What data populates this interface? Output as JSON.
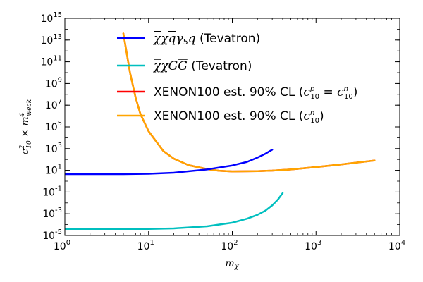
{
  "chart_data": {
    "type": "line",
    "xscale": "log",
    "yscale": "log",
    "xlim": [
      1,
      10000
    ],
    "ylim": [
      1e-05,
      1000000000000000
    ],
    "xlabel": "mχ",
    "ylabel": "c²₁₀ × m⁴weak",
    "grid": false,
    "legend": "top-center",
    "x_ticks": [
      {
        "base": "10",
        "exp": "0",
        "value": 1
      },
      {
        "base": "10",
        "exp": "1",
        "value": 10
      },
      {
        "base": "10",
        "exp": "2",
        "value": 100
      },
      {
        "base": "10",
        "exp": "3",
        "value": 1000
      },
      {
        "base": "10",
        "exp": "4",
        "value": 10000
      }
    ],
    "y_ticks": [
      {
        "base": "10",
        "exp": "-5",
        "value": 1e-05
      },
      {
        "base": "10",
        "exp": "-3",
        "value": 0.001
      },
      {
        "base": "10",
        "exp": "-1",
        "value": 0.1
      },
      {
        "base": "10",
        "exp": "1",
        "value": 10
      },
      {
        "base": "10",
        "exp": "3",
        "value": 1000
      },
      {
        "base": "10",
        "exp": "5",
        "value": 100000
      },
      {
        "base": "10",
        "exp": "7",
        "value": 10000000
      },
      {
        "base": "10",
        "exp": "9",
        "value": 1000000000
      },
      {
        "base": "10",
        "exp": "11",
        "value": 100000000000
      },
      {
        "base": "10",
        "exp": "13",
        "value": 10000000000000
      },
      {
        "base": "10",
        "exp": "15",
        "value": 1000000000000000
      }
    ],
    "series": [
      {
        "name": "χχqγ5q (Tevatron)",
        "color": "#0000ff",
        "points": [
          [
            1,
            4.5
          ],
          [
            5,
            4.5
          ],
          [
            10,
            4.8
          ],
          [
            20,
            6
          ],
          [
            50,
            12
          ],
          [
            100,
            28
          ],
          [
            150,
            60
          ],
          [
            200,
            150
          ],
          [
            250,
            350
          ],
          [
            300,
            800
          ]
        ]
      },
      {
        "name": "χχGG (Tevatron)",
        "color": "#00bfbf",
        "points": [
          [
            1,
            4e-05
          ],
          [
            10,
            4e-05
          ],
          [
            20,
            4.5e-05
          ],
          [
            50,
            7e-05
          ],
          [
            100,
            0.00015
          ],
          [
            150,
            0.00035
          ],
          [
            200,
            0.0008
          ],
          [
            250,
            0.002
          ],
          [
            300,
            0.006
          ],
          [
            350,
            0.02
          ],
          [
            400,
            0.08
          ]
        ]
      },
      {
        "name": "XENON100 est. 90% CL (c^p₁₀ = c^n₁₀)",
        "color": "#ff0000",
        "points": [
          [
            5,
            40000000000000
          ],
          [
            6,
            10000000000
          ],
          [
            7,
            50000000
          ],
          [
            8,
            1500000
          ],
          [
            10,
            40000
          ],
          [
            15,
            600
          ],
          [
            20,
            120
          ],
          [
            30,
            30
          ],
          [
            50,
            13
          ],
          [
            70,
            9
          ],
          [
            100,
            8
          ],
          [
            200,
            8.5
          ],
          [
            300,
            9.5
          ],
          [
            500,
            12
          ],
          [
            1000,
            20
          ],
          [
            2000,
            35
          ],
          [
            5000,
            80
          ]
        ]
      },
      {
        "name": "XENON100 est. 90% CL (c^n₁₀)",
        "color": "#ffa500",
        "points": [
          [
            5,
            40000000000000
          ],
          [
            6,
            10000000000
          ],
          [
            7,
            50000000
          ],
          [
            8,
            1500000
          ],
          [
            10,
            40000
          ],
          [
            15,
            600
          ],
          [
            20,
            120
          ],
          [
            30,
            30
          ],
          [
            50,
            13
          ],
          [
            70,
            9
          ],
          [
            100,
            8
          ],
          [
            200,
            8.5
          ],
          [
            300,
            9.5
          ],
          [
            500,
            12
          ],
          [
            1000,
            20
          ],
          [
            2000,
            35
          ],
          [
            5000,
            80
          ]
        ]
      }
    ]
  }
}
